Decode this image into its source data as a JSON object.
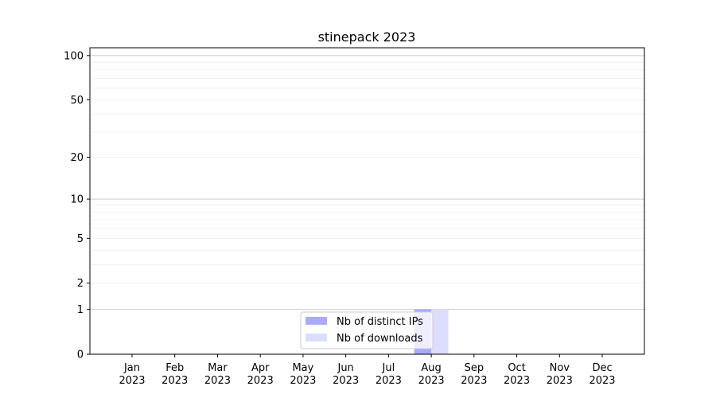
{
  "chart_data": {
    "type": "bar",
    "title": "stinepack 2023",
    "xlabel": "",
    "ylabel": "",
    "y_scale": "symlog (log of 1+y)",
    "ylim": [
      0,
      113
    ],
    "y_ticks": [
      0,
      1,
      2,
      5,
      10,
      20,
      50,
      100
    ],
    "grid": true,
    "legend_position": "bottom-center",
    "categories": [
      "Jan\n2023",
      "Feb\n2023",
      "Mar\n2023",
      "Apr\n2023",
      "May\n2023",
      "Jun\n2023",
      "Jul\n2023",
      "Aug\n2023",
      "Sep\n2023",
      "Oct\n2023",
      "Nov\n2023",
      "Dec\n2023"
    ],
    "category_labels": [
      [
        "Jan",
        "2023"
      ],
      [
        "Feb",
        "2023"
      ],
      [
        "Mar",
        "2023"
      ],
      [
        "Apr",
        "2023"
      ],
      [
        "May",
        "2023"
      ],
      [
        "Jun",
        "2023"
      ],
      [
        "Jul",
        "2023"
      ],
      [
        "Aug",
        "2023"
      ],
      [
        "Sep",
        "2023"
      ],
      [
        "Oct",
        "2023"
      ],
      [
        "Nov",
        "2023"
      ],
      [
        "Dec",
        "2023"
      ]
    ],
    "series": [
      {
        "name": "Nb of distinct IPs",
        "color": "#aaaaff",
        "values": [
          0,
          0,
          0,
          0,
          0,
          0,
          0,
          1,
          0,
          0,
          0,
          0
        ]
      },
      {
        "name": "Nb of downloads",
        "color": "#ddddff",
        "values": [
          0,
          0,
          0,
          0,
          0,
          0,
          0,
          1,
          0,
          0,
          0,
          0
        ]
      }
    ]
  }
}
